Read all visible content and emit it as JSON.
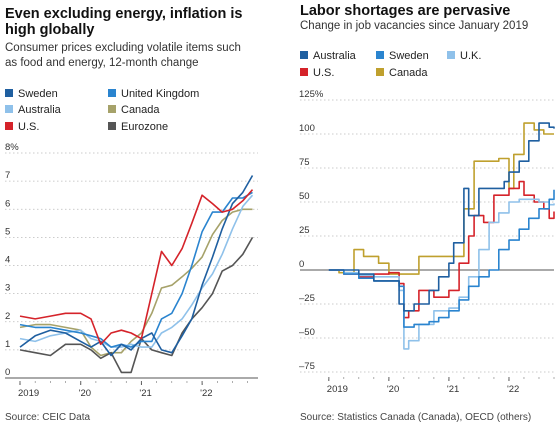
{
  "left": {
    "title": "Even excluding energy, inflation is\nhigh globally",
    "subtitle": "Consumer prices excluding volatile items such\nas food and energy, 12-month change",
    "source": "Source: CEIC Data",
    "legend": [
      {
        "label": "Sweden",
        "color": "#1f5fa0"
      },
      {
        "label": "United Kingdom",
        "color": "#2a84cf"
      },
      {
        "label": "Australia",
        "color": "#8fc1ea"
      },
      {
        "label": "Canada",
        "color": "#a6a26a"
      },
      {
        "label": "U.S.",
        "color": "#d5232a"
      },
      {
        "label": "Eurozone",
        "color": "#555555"
      }
    ]
  },
  "right": {
    "title": "Labor shortages are pervasive",
    "subtitle": "Change in job vacancies since January 2019",
    "source": "Source: Statistics Canada (Canada), OECD (others)",
    "legend": [
      {
        "label": "Australia",
        "color": "#1f5fa0"
      },
      {
        "label": "Sweden",
        "color": "#2a84cf"
      },
      {
        "label": "U.K.",
        "color": "#8fc1ea"
      },
      {
        "label": "U.S.",
        "color": "#d5232a"
      },
      {
        "label": "Canada",
        "color": "#bfa02e"
      }
    ]
  },
  "chart_data": [
    {
      "type": "line",
      "title": "Even excluding energy, inflation is high globally",
      "subtitle": "Consumer prices excluding volatile items such as food and energy, 12-month change",
      "x_range": [
        2019,
        2022.92
      ],
      "x_ticks": [
        {
          "value": 2019,
          "label": "2019"
        },
        {
          "value": 2020,
          "label": "'20"
        },
        {
          "value": 2021,
          "label": "'21"
        },
        {
          "value": 2022,
          "label": "'22"
        }
      ],
      "ylim": [
        0,
        8
      ],
      "y_ticks": [
        {
          "value": 0,
          "label": "0"
        },
        {
          "value": 1,
          "label": "1"
        },
        {
          "value": 2,
          "label": "2"
        },
        {
          "value": 3,
          "label": "3"
        },
        {
          "value": 4,
          "label": "4"
        },
        {
          "value": 5,
          "label": "5"
        },
        {
          "value": 6,
          "label": "6"
        },
        {
          "value": 7,
          "label": "7"
        },
        {
          "value": 8,
          "label": "8%"
        }
      ],
      "series": [
        {
          "name": "Canada",
          "color": "#a6a26a",
          "x": [
            2019.0,
            2019.25,
            2019.5,
            2019.75,
            2020.0,
            2020.17,
            2020.33,
            2020.5,
            2020.67,
            2020.83,
            2021.0,
            2021.17,
            2021.33,
            2021.5,
            2021.67,
            2021.83,
            2022.0,
            2022.17,
            2022.33,
            2022.5,
            2022.67,
            2022.83
          ],
          "y": [
            1.8,
            1.9,
            1.9,
            1.8,
            1.7,
            1.1,
            0.8,
            0.9,
            0.9,
            1.3,
            1.6,
            2.3,
            3.2,
            3.3,
            3.6,
            3.9,
            4.3,
            5.1,
            5.6,
            5.9,
            6.0,
            6.0
          ]
        },
        {
          "name": "Eurozone",
          "color": "#555555",
          "x": [
            2019.0,
            2019.25,
            2019.5,
            2019.75,
            2020.0,
            2020.17,
            2020.33,
            2020.5,
            2020.67,
            2020.83,
            2021.0,
            2021.17,
            2021.33,
            2021.5,
            2021.67,
            2021.83,
            2022.0,
            2022.17,
            2022.33,
            2022.5,
            2022.67,
            2022.83
          ],
          "y": [
            1.0,
            0.9,
            0.8,
            1.2,
            1.2,
            1.0,
            0.7,
            0.9,
            0.2,
            0.2,
            1.4,
            1.0,
            0.9,
            0.8,
            1.6,
            2.1,
            2.5,
            3.0,
            3.8,
            4.0,
            4.4,
            5.0
          ]
        },
        {
          "name": "Australia",
          "color": "#8fc1ea",
          "x": [
            2019.0,
            2019.25,
            2019.5,
            2019.75,
            2020.0,
            2020.17,
            2020.33,
            2020.5,
            2020.67,
            2020.83,
            2021.0,
            2021.17,
            2021.33,
            2021.5,
            2021.67,
            2021.83,
            2022.0,
            2022.17,
            2022.33,
            2022.5,
            2022.67,
            2022.83
          ],
          "y": [
            1.4,
            1.3,
            1.5,
            1.6,
            1.7,
            1.4,
            1.3,
            1.1,
            1.1,
            1.2,
            1.1,
            1.1,
            1.6,
            1.8,
            2.1,
            2.6,
            3.2,
            3.7,
            4.4,
            5.3,
            6.1,
            6.5
          ]
        },
        {
          "name": "United Kingdom",
          "color": "#2a84cf",
          "x": [
            2019.0,
            2019.25,
            2019.5,
            2019.75,
            2020.0,
            2020.17,
            2020.33,
            2020.5,
            2020.67,
            2020.83,
            2021.0,
            2021.17,
            2021.33,
            2021.5,
            2021.67,
            2021.83,
            2022.0,
            2022.17,
            2022.33,
            2022.5,
            2022.67,
            2022.83
          ],
          "y": [
            1.9,
            1.8,
            1.8,
            1.7,
            1.6,
            1.5,
            1.4,
            1.1,
            1.2,
            1.1,
            1.3,
            1.3,
            2.1,
            2.3,
            3.0,
            4.0,
            5.2,
            5.9,
            5.9,
            6.4,
            6.4,
            6.6
          ]
        },
        {
          "name": "Sweden",
          "color": "#1f5fa0",
          "x": [
            2019.0,
            2019.25,
            2019.5,
            2019.75,
            2020.0,
            2020.17,
            2020.33,
            2020.5,
            2020.67,
            2020.83,
            2021.0,
            2021.17,
            2021.33,
            2021.5,
            2021.67,
            2021.83,
            2022.0,
            2022.17,
            2022.33,
            2022.5,
            2022.67,
            2022.83
          ],
          "y": [
            1.1,
            1.5,
            1.7,
            1.6,
            1.3,
            1.1,
            1.3,
            0.8,
            1.2,
            1.0,
            1.4,
            1.6,
            1.0,
            0.9,
            1.5,
            2.1,
            3.3,
            4.3,
            5.3,
            6.2,
            6.6,
            7.2
          ]
        },
        {
          "name": "U.S.",
          "color": "#d5232a",
          "x": [
            2019.0,
            2019.25,
            2019.5,
            2019.75,
            2020.0,
            2020.17,
            2020.33,
            2020.5,
            2020.67,
            2020.83,
            2021.0,
            2021.17,
            2021.33,
            2021.5,
            2021.67,
            2021.83,
            2022.0,
            2022.17,
            2022.33,
            2022.5,
            2022.67,
            2022.83
          ],
          "y": [
            2.2,
            2.1,
            2.2,
            2.3,
            2.3,
            2.1,
            1.2,
            1.6,
            1.7,
            1.6,
            1.4,
            3.0,
            4.5,
            4.0,
            4.6,
            5.5,
            6.5,
            6.2,
            5.9,
            6.0,
            6.3,
            6.7
          ]
        }
      ]
    },
    {
      "type": "line",
      "title": "Labor shortages are pervasive",
      "subtitle": "Change in job vacancies since January 2019",
      "x_range": [
        2018.92,
        2022.75
      ],
      "x_ticks": [
        {
          "value": 2019,
          "label": "2019"
        },
        {
          "value": 2020,
          "label": "'20"
        },
        {
          "value": 2021,
          "label": "'21"
        },
        {
          "value": 2022,
          "label": "'22"
        }
      ],
      "ylim": [
        -75,
        125
      ],
      "y_ticks": [
        {
          "value": -75,
          "label": "–75"
        },
        {
          "value": -50,
          "label": "–50"
        },
        {
          "value": -25,
          "label": "–25"
        },
        {
          "value": 0,
          "label": "0"
        },
        {
          "value": 25,
          "label": "25"
        },
        {
          "value": 50,
          "label": "50"
        },
        {
          "value": 75,
          "label": "75"
        },
        {
          "value": 100,
          "label": "100"
        },
        {
          "value": 125,
          "label": "125%"
        }
      ],
      "series": [
        {
          "name": "Canada",
          "color": "#bfa02e",
          "x": [
            2019.0,
            2019.17,
            2019.42,
            2019.58,
            2019.83,
            2020.0,
            2020.17,
            2020.25,
            2020.5,
            2020.83,
            2021.0,
            2021.17,
            2021.25,
            2021.42,
            2021.58,
            2021.83,
            2022.0,
            2022.08,
            2022.25,
            2022.42,
            2022.58,
            2022.75
          ],
          "y": [
            0,
            -2,
            15,
            10,
            5,
            -3,
            -3,
            -3,
            10,
            10,
            10,
            10,
            45,
            80,
            80,
            82,
            60,
            85,
            108,
            103,
            100,
            100
          ]
        },
        {
          "name": "U.S.",
          "color": "#d5232a",
          "x": [
            2019.0,
            2019.25,
            2019.5,
            2019.75,
            2020.0,
            2020.17,
            2020.25,
            2020.33,
            2020.5,
            2020.75,
            2021.0,
            2021.17,
            2021.33,
            2021.42,
            2021.58,
            2021.75,
            2022.0,
            2022.17,
            2022.25,
            2022.42,
            2022.58,
            2022.67,
            2022.75
          ],
          "y": [
            0,
            -3,
            -5,
            -3,
            -2,
            -10,
            -35,
            -30,
            -15,
            -20,
            -15,
            5,
            25,
            40,
            35,
            55,
            60,
            65,
            55,
            50,
            45,
            38,
            43
          ]
        },
        {
          "name": "U.K.",
          "color": "#8fc1ea",
          "x": [
            2019.0,
            2019.25,
            2019.5,
            2019.75,
            2020.0,
            2020.17,
            2020.25,
            2020.33,
            2020.5,
            2020.75,
            2021.0,
            2021.17,
            2021.33,
            2021.5,
            2021.67,
            2021.83,
            2022.0,
            2022.17,
            2022.33,
            2022.5,
            2022.67,
            2022.75
          ],
          "y": [
            0,
            -2,
            -4,
            -5,
            -5,
            -15,
            -58,
            -52,
            -40,
            -30,
            -28,
            -20,
            -5,
            15,
            35,
            42,
            50,
            52,
            52,
            50,
            48,
            49
          ]
        },
        {
          "name": "Sweden",
          "color": "#2a84cf",
          "x": [
            2019.0,
            2019.25,
            2019.5,
            2019.75,
            2020.0,
            2020.17,
            2020.25,
            2020.42,
            2020.67,
            2020.83,
            2021.0,
            2021.17,
            2021.33,
            2021.5,
            2021.67,
            2021.83,
            2022.0,
            2022.17,
            2022.33,
            2022.5,
            2022.67,
            2022.75
          ],
          "y": [
            0,
            -3,
            -6,
            -8,
            -8,
            -12,
            -42,
            -40,
            -38,
            -35,
            -30,
            -22,
            -12,
            -5,
            0,
            15,
            22,
            30,
            38,
            45,
            52,
            59
          ]
        },
        {
          "name": "Australia",
          "color": "#1f5fa0",
          "x": [
            2019.0,
            2019.25,
            2019.5,
            2019.75,
            2020.0,
            2020.17,
            2020.25,
            2020.42,
            2020.67,
            2020.83,
            2021.0,
            2021.08,
            2021.25,
            2021.33,
            2021.5,
            2021.58,
            2021.75,
            2021.92,
            2022.0,
            2022.17,
            2022.33,
            2022.5,
            2022.67,
            2022.75
          ],
          "y": [
            0,
            0,
            -3,
            -8,
            -8,
            -25,
            -30,
            -25,
            -15,
            -5,
            5,
            20,
            60,
            40,
            60,
            60,
            60,
            65,
            72,
            80,
            95,
            108,
            105,
            104
          ]
        }
      ]
    }
  ]
}
